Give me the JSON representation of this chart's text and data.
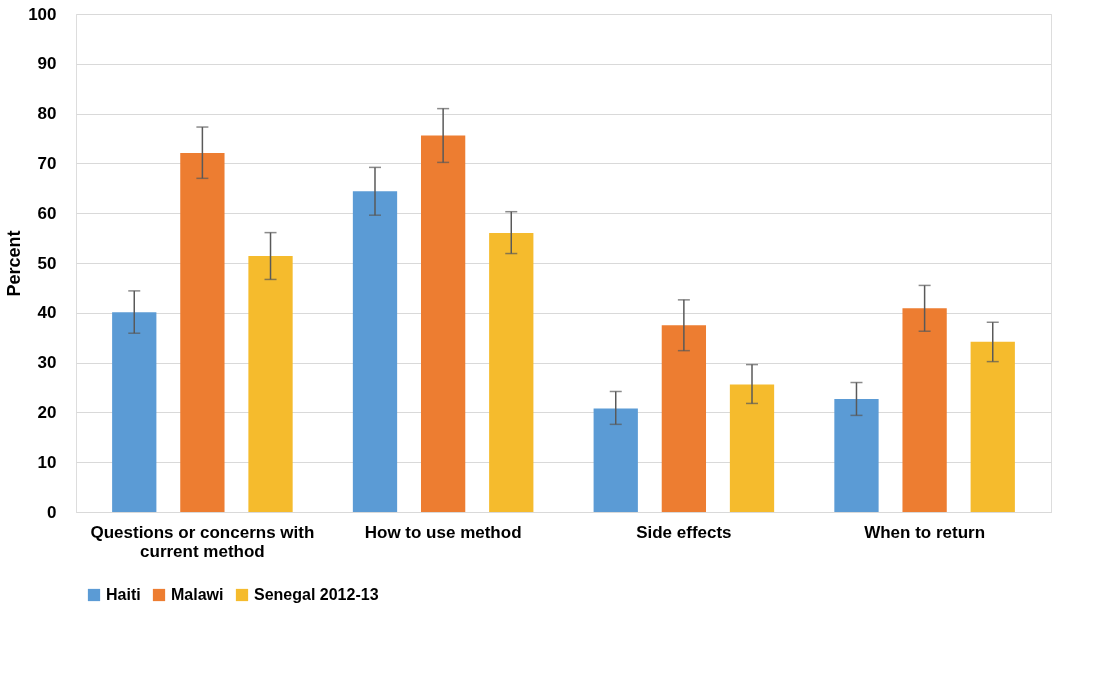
{
  "chart_data": {
    "type": "bar",
    "ylabel": "Percent",
    "categories": [
      "Questions or concerns with current method",
      "How to use method",
      "Side effects",
      "When to return"
    ],
    "series": [
      {
        "name": "Haiti",
        "color": "#5b9bd5",
        "values": [
          40.1,
          64.4,
          20.8,
          22.7
        ],
        "errors": [
          [
            35.9,
            44.4
          ],
          [
            59.6,
            69.2
          ],
          [
            17.6,
            24.2
          ],
          [
            19.4,
            26.0
          ]
        ]
      },
      {
        "name": "Malawi",
        "color": "#ed7d31",
        "values": [
          72.1,
          75.6,
          37.5,
          40.9
        ],
        "errors": [
          [
            67.0,
            77.3
          ],
          [
            70.2,
            81.0
          ],
          [
            32.4,
            42.6
          ],
          [
            36.3,
            45.5
          ]
        ]
      },
      {
        "name": "Senegal 2012-13",
        "color": "#f5bb2d",
        "values": [
          51.4,
          56.0,
          25.6,
          34.2
        ],
        "errors": [
          [
            46.7,
            56.1
          ],
          [
            51.9,
            60.3
          ],
          [
            21.8,
            29.6
          ],
          [
            30.2,
            38.1
          ]
        ]
      }
    ],
    "ylim": [
      0,
      100
    ],
    "yticks": [
      0,
      10,
      20,
      30,
      40,
      50,
      60,
      70,
      80,
      90,
      100
    ],
    "grid": "y",
    "legend": "bottom"
  }
}
